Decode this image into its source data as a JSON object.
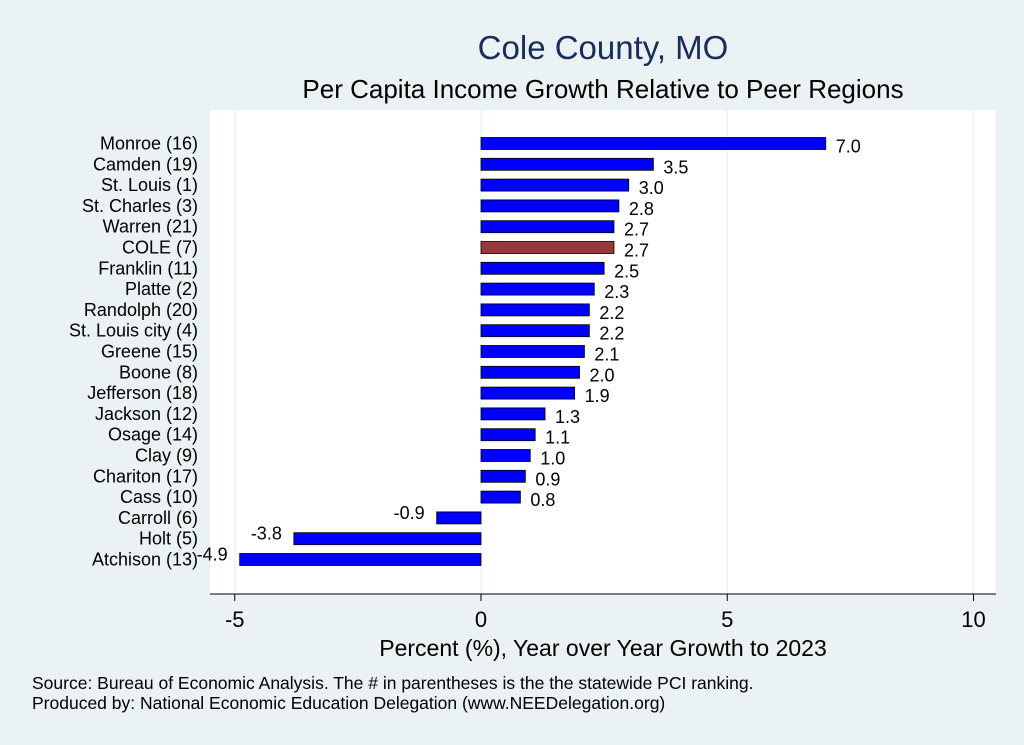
{
  "chart_data": {
    "type": "bar",
    "orientation": "horizontal",
    "title": "Cole County, MO",
    "subtitle": "Per Capita Income Growth Relative to Peer Regions",
    "xlabel": "Percent (%), Year over Year Growth to 2023",
    "ylabel": "",
    "xlim": [
      -5.5,
      10.5
    ],
    "xticks": [
      -5,
      0,
      5,
      10
    ],
    "xtick_labels": [
      "-5",
      "0",
      "5",
      "10"
    ],
    "grid": "vertical",
    "categories": [
      "Monroe (16)",
      "Camden (19)",
      "St. Louis  (1)",
      "St. Charles  (3)",
      "Warren (21)",
      "COLE  (7)",
      "Franklin (11)",
      "Platte  (2)",
      "Randolph (20)",
      "St. Louis city  (4)",
      "Greene (15)",
      "Boone  (8)",
      "Jefferson (18)",
      "Jackson (12)",
      "Osage (14)",
      "Clay  (9)",
      "Chariton (17)",
      "Cass (10)",
      "Carroll  (6)",
      "Holt  (5)",
      "Atchison (13)"
    ],
    "values": [
      7.0,
      3.5,
      3.0,
      2.8,
      2.7,
      2.7,
      2.5,
      2.3,
      2.2,
      2.2,
      2.1,
      2.0,
      1.9,
      1.3,
      1.1,
      1.0,
      0.9,
      0.8,
      -0.9,
      -3.8,
      -4.9
    ],
    "value_labels": [
      "7.0",
      "3.5",
      "3.0",
      "2.8",
      "2.7",
      "2.7",
      "2.5",
      "2.3",
      "2.2",
      "2.2",
      "2.1",
      "2.0",
      "1.9",
      "1.3",
      "1.1",
      "1.0",
      "0.9",
      "0.8",
      "-0.9",
      "-3.8",
      "-4.9"
    ],
    "highlight_category": "COLE  (7)",
    "colors": {
      "bar": "#0000ff",
      "highlight": "#933b3b",
      "bar_edge": "#000000",
      "title": "#1a2c5b",
      "page_bg": "#eaf2f3",
      "plot_bg": "#ffffff",
      "grid": "#eaf2f3"
    }
  },
  "footer": {
    "source": "Source: Bureau of Economic Analysis. The # in parentheses is the the statewide PCI ranking.",
    "produced_by": "Produced by: National Economic Education Delegation (www.NEEDelegation.org)"
  }
}
